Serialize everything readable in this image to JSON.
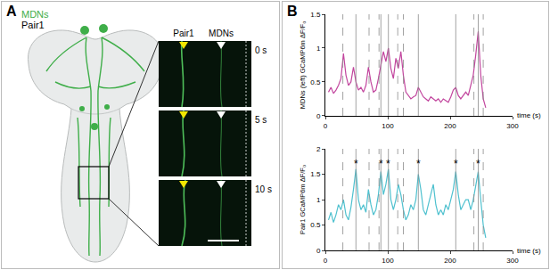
{
  "panel_a": {
    "label": "A",
    "key_labels": [
      {
        "text": "MDNs",
        "color": "#3fae49"
      },
      {
        "text": "Pair1",
        "color": "#000000"
      }
    ],
    "inset": {
      "columns": [
        "Pair1",
        "MDNs"
      ],
      "column_colors": [
        "#f2e600",
        "#ffffff"
      ],
      "frames": [
        "0 s",
        "5 s",
        "10 s"
      ]
    }
  },
  "panel_b": {
    "label": "B"
  },
  "chart_data": [
    {
      "type": "line",
      "xlabel": "time (s)",
      "ylabel": "MDNs (left) GCaMP6m ΔF/F₀",
      "color": "#c2469e",
      "grid": false,
      "xlim": [
        0,
        300
      ],
      "xticks": [
        0,
        100,
        200,
        300
      ],
      "ylim": [
        0,
        1.5
      ],
      "yticks": [
        0,
        0.5,
        1,
        1.5
      ],
      "x": [
        5,
        9,
        13,
        17,
        21,
        25,
        29,
        33,
        37,
        41,
        45,
        49,
        53,
        57,
        61,
        65,
        69,
        73,
        77,
        81,
        85,
        89,
        93,
        97,
        101,
        105,
        109,
        113,
        117,
        121,
        125,
        129,
        133,
        137,
        141,
        145,
        149,
        153,
        157,
        161,
        165,
        169,
        173,
        177,
        181,
        185,
        189,
        193,
        197,
        201,
        205,
        209,
        213,
        217,
        221,
        225,
        229,
        233,
        237,
        241,
        245,
        249,
        253,
        257
      ],
      "values": [
        0.35,
        0.42,
        0.33,
        0.38,
        0.45,
        0.55,
        0.92,
        0.6,
        0.45,
        0.5,
        0.72,
        0.5,
        0.38,
        0.42,
        0.35,
        0.45,
        0.72,
        0.5,
        0.35,
        0.38,
        0.55,
        0.75,
        0.95,
        0.8,
        1.0,
        0.7,
        0.55,
        0.85,
        0.7,
        0.95,
        0.6,
        0.35,
        0.3,
        0.25,
        0.28,
        0.3,
        0.42,
        0.35,
        0.28,
        0.25,
        0.22,
        0.28,
        0.25,
        0.22,
        0.25,
        0.2,
        0.25,
        0.22,
        0.2,
        0.28,
        0.38,
        0.42,
        0.3,
        0.25,
        0.3,
        0.35,
        0.3,
        0.45,
        0.6,
        0.9,
        1.25,
        0.6,
        0.25,
        0.12
      ],
      "dashed_lines": [
        28,
        70,
        86,
        116,
        125,
        238,
        253
      ],
      "solid_lines": [
        49,
        89,
        101,
        149,
        209,
        245
      ]
    },
    {
      "type": "line",
      "xlabel": "time (s)",
      "ylabel": "Pair1 GCaMP6m ΔF/F₀",
      "color": "#4fc1cf",
      "grid": false,
      "xlim": [
        0,
        300
      ],
      "xticks": [
        0,
        100,
        200,
        300
      ],
      "ylim": [
        0,
        2
      ],
      "yticks": [
        0,
        0.5,
        1,
        1.5,
        2
      ],
      "x": [
        5,
        9,
        13,
        17,
        21,
        25,
        29,
        33,
        37,
        41,
        45,
        49,
        53,
        57,
        61,
        65,
        69,
        73,
        77,
        81,
        85,
        89,
        93,
        97,
        101,
        105,
        109,
        113,
        117,
        121,
        125,
        129,
        133,
        137,
        141,
        145,
        149,
        153,
        157,
        161,
        165,
        169,
        173,
        177,
        181,
        185,
        189,
        193,
        197,
        201,
        205,
        209,
        213,
        217,
        221,
        225,
        229,
        233,
        237,
        241,
        245,
        249,
        253,
        257
      ],
      "values": [
        0.6,
        0.75,
        0.55,
        0.7,
        0.9,
        0.8,
        1.0,
        0.7,
        0.6,
        0.85,
        1.2,
        1.6,
        1.0,
        0.8,
        0.9,
        0.75,
        1.2,
        0.9,
        0.7,
        0.8,
        1.1,
        1.55,
        1.1,
        1.3,
        1.6,
        1.0,
        0.8,
        1.0,
        1.3,
        1.1,
        0.8,
        0.6,
        0.7,
        0.9,
        0.8,
        1.0,
        1.5,
        1.2,
        0.8,
        0.7,
        0.9,
        1.1,
        1.3,
        0.9,
        0.7,
        0.8,
        0.7,
        0.9,
        0.8,
        1.0,
        1.2,
        1.55,
        1.1,
        0.8,
        0.9,
        1.0,
        1.0,
        0.8,
        1.0,
        1.3,
        1.55,
        1.0,
        0.5,
        0.25
      ],
      "dashed_lines": [
        28,
        70,
        86,
        116,
        125,
        238,
        253
      ],
      "solid_lines": [
        49,
        89,
        101,
        149,
        209,
        245
      ],
      "asterisks": {
        "text": "*",
        "x": [
          49,
          89,
          101,
          149,
          209,
          245
        ]
      }
    }
  ]
}
